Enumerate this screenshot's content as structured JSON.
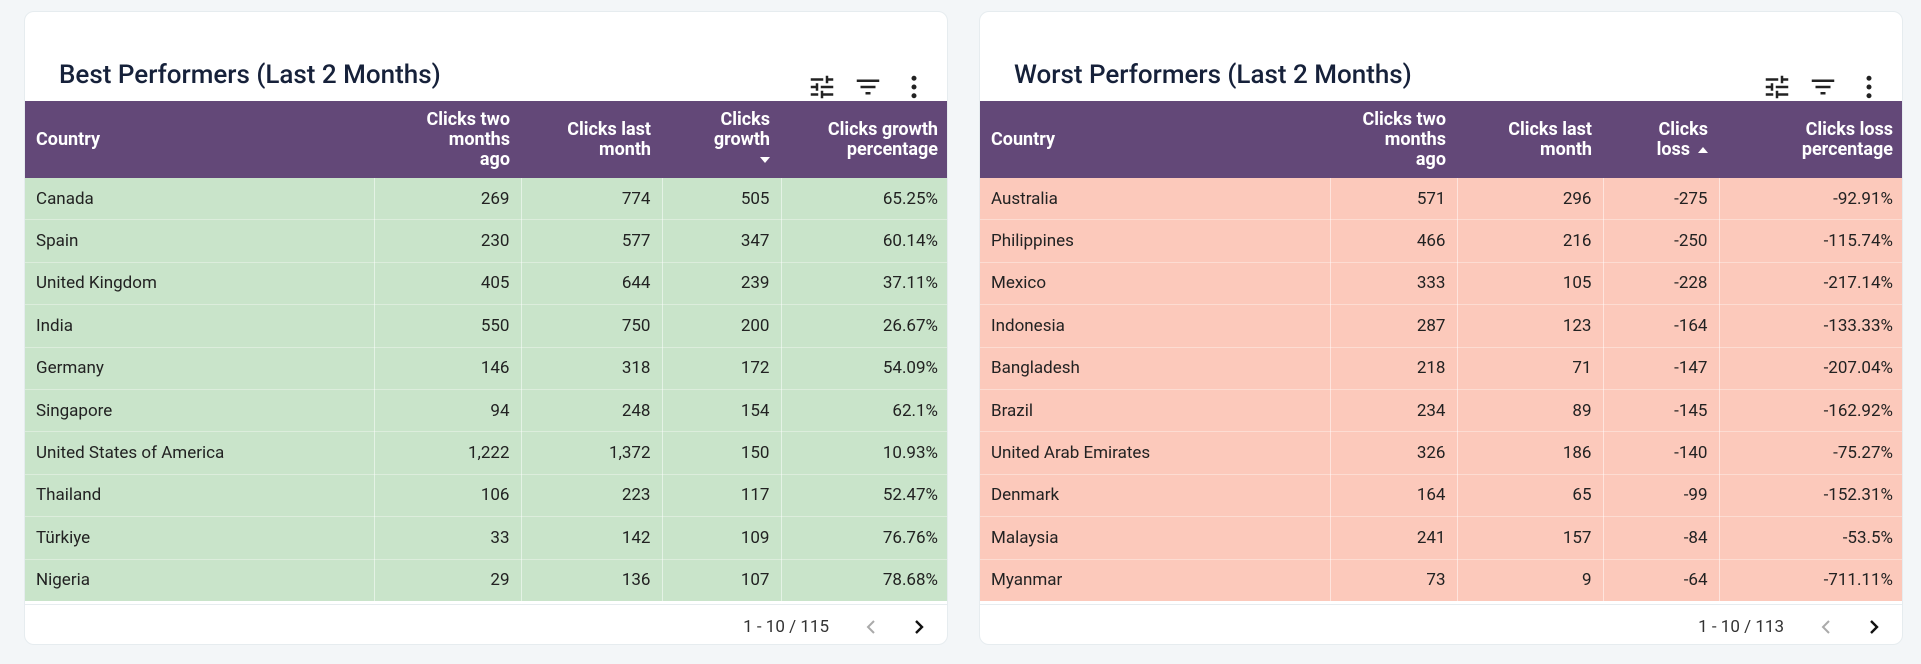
{
  "panels": [
    {
      "title": "Best Performers (Last 2 Months)",
      "row_color": "#c9e4ca",
      "sort": {
        "column": 3,
        "direction": "descending"
      },
      "columns": [
        "Country",
        "Clicks two months ago",
        "Clicks last month",
        "Clicks growth",
        "Clicks growth percentage"
      ],
      "rows": [
        [
          "Canada",
          "269",
          "774",
          "505",
          "65.25%"
        ],
        [
          "Spain",
          "230",
          "577",
          "347",
          "60.14%"
        ],
        [
          "United Kingdom",
          "405",
          "644",
          "239",
          "37.11%"
        ],
        [
          "India",
          "550",
          "750",
          "200",
          "26.67%"
        ],
        [
          "Germany",
          "146",
          "318",
          "172",
          "54.09%"
        ],
        [
          "Singapore",
          "94",
          "248",
          "154",
          "62.1%"
        ],
        [
          "United States of America",
          "1,222",
          "1,372",
          "150",
          "10.93%"
        ],
        [
          "Thailand",
          "106",
          "223",
          "117",
          "52.47%"
        ],
        [
          "Türkiye",
          "33",
          "142",
          "109",
          "76.76%"
        ],
        [
          "Nigeria",
          "29",
          "136",
          "107",
          "78.68%"
        ]
      ],
      "pagination": "1 - 10 / 115"
    },
    {
      "title": "Worst Performers (Last 2 Months)",
      "row_color": "#fcc9bb",
      "sort": {
        "column": 3,
        "direction": "ascending"
      },
      "columns": [
        "Country",
        "Clicks two months ago",
        "Clicks last month",
        "Clicks loss",
        "Clicks loss percentage"
      ],
      "rows": [
        [
          "Australia",
          "571",
          "296",
          "-275",
          "-92.91%"
        ],
        [
          "Philippines",
          "466",
          "216",
          "-250",
          "-115.74%"
        ],
        [
          "Mexico",
          "333",
          "105",
          "-228",
          "-217.14%"
        ],
        [
          "Indonesia",
          "287",
          "123",
          "-164",
          "-133.33%"
        ],
        [
          "Bangladesh",
          "218",
          "71",
          "-147",
          "-207.04%"
        ],
        [
          "Brazil",
          "234",
          "89",
          "-145",
          "-162.92%"
        ],
        [
          "United Arab Emirates",
          "326",
          "186",
          "-140",
          "-75.27%"
        ],
        [
          "Denmark",
          "164",
          "65",
          "-99",
          "-152.31%"
        ],
        [
          "Malaysia",
          "241",
          "157",
          "-84",
          "-53.5%"
        ],
        [
          "Myanmar",
          "73",
          "9",
          "-64",
          "-711.11%"
        ]
      ],
      "pagination": "1 - 10 / 113"
    }
  ]
}
